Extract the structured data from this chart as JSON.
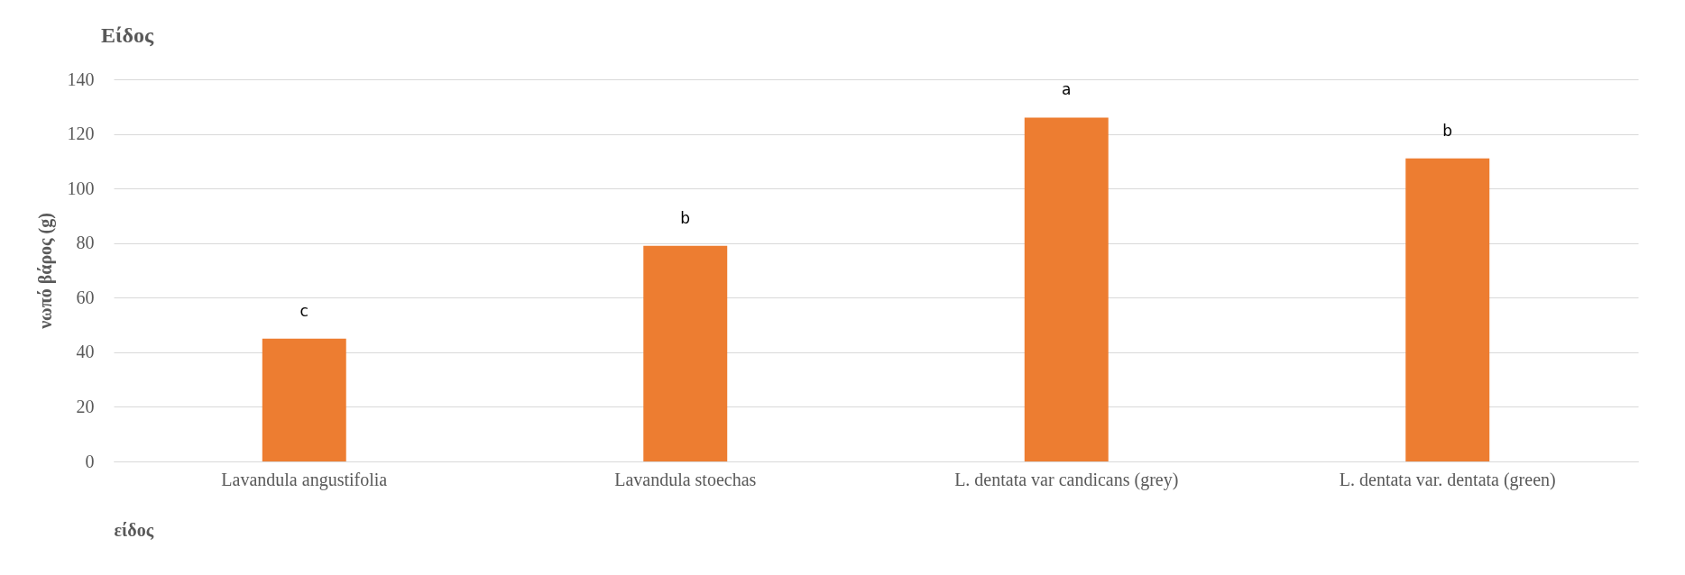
{
  "chart_data": {
    "type": "bar",
    "title": "Είδος",
    "xlabel": "είδος",
    "ylabel": "νωπό  βάρος (g)",
    "categories": [
      "Lavandula angustifolia",
      "Lavandula stoechas",
      "L. dentata var candicans (grey)",
      "L. dentata var. dentata (green)"
    ],
    "values": [
      45,
      79,
      126,
      111
    ],
    "color": "#ed7d31",
    "ylim": [
      0,
      140
    ],
    "yticks": [
      0,
      20,
      40,
      60,
      80,
      100,
      120,
      140
    ],
    "grid": "y",
    "annotations": [
      {
        "text": "c",
        "x": "Lavandula angustifolia",
        "y": 45
      },
      {
        "text": "b",
        "x": "Lavandula stoechas",
        "y": 79
      },
      {
        "text": "a",
        "x": "L. dentata var candicans (grey)",
        "y": 126
      },
      {
        "text": "b",
        "x": "L. dentata var. dentata (green)",
        "y": 111
      }
    ]
  }
}
